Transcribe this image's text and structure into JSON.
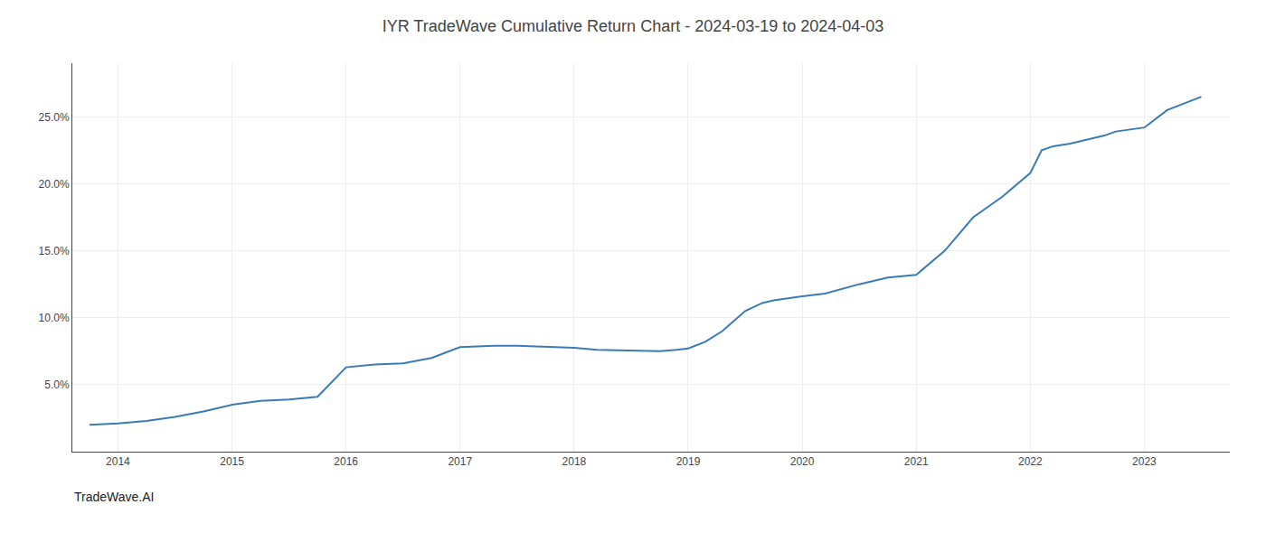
{
  "chart_data": {
    "type": "line",
    "title": "IYR TradeWave Cumulative Return Chart - 2024-03-19 to 2024-04-03",
    "annotations": [
      "TradeWave.AI"
    ],
    "color": "#3a7ab5",
    "grid": true,
    "x": [
      2013.75,
      2014.0,
      2014.25,
      2014.5,
      2014.75,
      2015.0,
      2015.25,
      2015.5,
      2015.75,
      2016.0,
      2016.25,
      2016.5,
      2016.75,
      2017.0,
      2017.15,
      2017.3,
      2017.5,
      2017.7,
      2017.85,
      2018.0,
      2018.2,
      2018.4,
      2018.6,
      2018.75,
      2018.9,
      2019.0,
      2019.15,
      2019.3,
      2019.5,
      2019.65,
      2019.75,
      2019.9,
      2020.0,
      2020.2,
      2020.5,
      2020.75,
      2021.0,
      2021.25,
      2021.5,
      2021.75,
      2022.0,
      2022.1,
      2022.2,
      2022.35,
      2022.5,
      2022.65,
      2022.75,
      2022.85,
      2023.0,
      2023.2,
      2023.5
    ],
    "values": [
      2.0,
      2.1,
      2.3,
      2.6,
      3.0,
      3.5,
      3.8,
      3.9,
      4.1,
      6.3,
      6.5,
      6.6,
      7.0,
      7.8,
      7.85,
      7.9,
      7.9,
      7.85,
      7.8,
      7.75,
      7.6,
      7.55,
      7.5,
      7.5,
      7.6,
      7.7,
      8.2,
      9.0,
      10.5,
      11.1,
      11.3,
      11.5,
      11.6,
      11.8,
      12.5,
      13.0,
      13.2,
      15.0,
      17.5,
      19.0,
      20.8,
      22.5,
      22.8,
      23.0,
      23.3,
      23.6,
      23.9,
      24.0,
      24.2,
      25.5,
      26.5
    ],
    "xlim": [
      2013.6,
      2023.75
    ],
    "xticks": [
      2014,
      2015,
      2016,
      2017,
      2018,
      2019,
      2020,
      2021,
      2022,
      2023
    ],
    "ylim": [
      0,
      29
    ],
    "yticks": [
      {
        "value": 5.0,
        "label": "5.0%"
      },
      {
        "value": 10.0,
        "label": "10.0%"
      },
      {
        "value": 15.0,
        "label": "15.0%"
      },
      {
        "value": 20.0,
        "label": "20.0%"
      },
      {
        "value": 25.0,
        "label": "25.0%"
      }
    ]
  }
}
